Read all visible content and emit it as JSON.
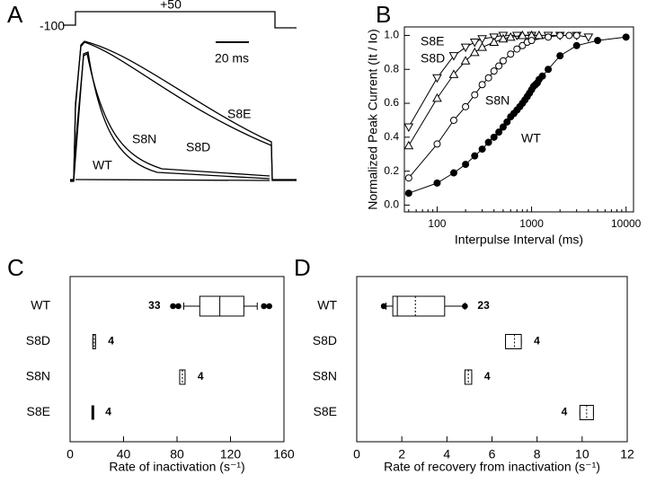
{
  "chart_data": [
    {
      "type": "traces",
      "panel": "A",
      "protocol_labels": [
        "-100",
        "+50"
      ],
      "scale_bar": "20 ms",
      "trace_labels": [
        "S8E",
        "S8D",
        "S8N",
        "WT"
      ]
    },
    {
      "type": "scatter",
      "panel": "B",
      "xlabel": "Interpulse Interval (ms)",
      "ylabel": "Normalized Peak Current (It / Io)",
      "xscale": "log",
      "xlim": [
        45,
        12000
      ],
      "xticks": [
        100,
        1000,
        10000
      ],
      "ylim": [
        -0.04,
        1.05
      ],
      "yticks": [
        {
          "value": 0,
          "label": "0.0"
        },
        {
          "value": 0.2,
          "label": "0.2"
        },
        {
          "value": 0.4,
          "label": "0.4"
        },
        {
          "value": 0.6,
          "label": "0.6"
        },
        {
          "value": 0.8,
          "label": "0.8"
        },
        {
          "value": 1,
          "label": "1.0"
        }
      ],
      "series": [
        {
          "name": "S8E",
          "color": "#000000",
          "marker": "triangle-down",
          "x": [
            50,
            100,
            150,
            200,
            250,
            300,
            400,
            500,
            700,
            1000,
            1500,
            2000,
            3000,
            4000
          ],
          "values": [
            0.46,
            0.75,
            0.88,
            0.93,
            0.96,
            0.98,
            0.99,
            1.0,
            1.0,
            1.0,
            1.0,
            1.0,
            1.0,
            0.99
          ]
        },
        {
          "name": "S8D",
          "color": "#000000",
          "marker": "triangle-up",
          "x": [
            50,
            100,
            150,
            200,
            250,
            300,
            400,
            500,
            600,
            800,
            1000,
            1200
          ],
          "values": [
            0.35,
            0.63,
            0.77,
            0.85,
            0.9,
            0.93,
            0.96,
            0.98,
            0.99,
            1.0,
            1.0,
            1.0
          ]
        },
        {
          "name": "S8N",
          "color": "#000000",
          "marker": "circle-open",
          "x": [
            50,
            100,
            150,
            200,
            250,
            300,
            350,
            400,
            450,
            500,
            600,
            700,
            800,
            900,
            1000,
            1500,
            2000,
            2500,
            3000
          ],
          "values": [
            0.16,
            0.36,
            0.5,
            0.58,
            0.65,
            0.71,
            0.75,
            0.79,
            0.82,
            0.85,
            0.89,
            0.92,
            0.94,
            0.96,
            0.97,
            0.99,
            1.0,
            1.0,
            1.0
          ]
        },
        {
          "name": "WT",
          "color": "#000000",
          "marker": "circle-filled",
          "x": [
            50,
            100,
            150,
            200,
            250,
            300,
            350,
            400,
            450,
            500,
            550,
            600,
            650,
            700,
            750,
            800,
            850,
            900,
            950,
            1000,
            1050,
            1100,
            1150,
            1200,
            1300,
            1500,
            2000,
            3000,
            5000,
            10000
          ],
          "values": [
            0.07,
            0.13,
            0.19,
            0.24,
            0.29,
            0.33,
            0.37,
            0.4,
            0.43,
            0.46,
            0.49,
            0.52,
            0.54,
            0.56,
            0.58,
            0.6,
            0.62,
            0.64,
            0.66,
            0.68,
            0.7,
            0.71,
            0.72,
            0.74,
            0.76,
            0.8,
            0.88,
            0.94,
            0.97,
            0.99
          ]
        }
      ]
    },
    {
      "type": "boxplot",
      "panel": "C",
      "xlabel": "Rate of inactivation (s⁻¹)",
      "xlim": [
        0,
        160
      ],
      "xticks": [
        0,
        40,
        80,
        120,
        160
      ],
      "categories": [
        "WT",
        "S8D",
        "S8N",
        "S8E"
      ],
      "boxes": [
        {
          "whislo": 85,
          "q1": 97,
          "med": 112,
          "q3": 130,
          "whishi": 140,
          "mean": null,
          "fliers": [
            77,
            81,
            145,
            149
          ],
          "n": 33
        },
        {
          "whislo": 17,
          "q1": 17,
          "med": null,
          "q3": 19,
          "whishi": 19,
          "mean": 18,
          "fliers": [],
          "n": 4
        },
        {
          "whislo": 82,
          "q1": 82,
          "med": null,
          "q3": 86,
          "whishi": 86,
          "mean": 84,
          "fliers": [],
          "n": 4
        },
        {
          "whislo": 17,
          "q1": 17,
          "med": 17,
          "q3": 17,
          "whishi": 17,
          "mean": null,
          "fliers": [],
          "n": 4
        }
      ]
    },
    {
      "type": "boxplot",
      "panel": "D",
      "xlabel": "Rate of recovery from inactivation (s⁻¹)",
      "xlim": [
        0,
        12
      ],
      "xticks": [
        0,
        2,
        4,
        6,
        8,
        10,
        12
      ],
      "categories": [
        "WT",
        "S8D",
        "S8N",
        "S8E"
      ],
      "boxes": [
        {
          "whislo": 1.3,
          "q1": 1.6,
          "med": 1.8,
          "q3": 3.9,
          "whishi": 4.8,
          "mean": 2.6,
          "fliers": [
            1.2,
            4.8
          ],
          "n": 23
        },
        {
          "whislo": 6.6,
          "q1": 6.6,
          "med": null,
          "q3": 7.3,
          "whishi": 7.3,
          "mean": 7.0,
          "fliers": [],
          "n": 4
        },
        {
          "whislo": 4.8,
          "q1": 4.8,
          "med": null,
          "q3": 5.1,
          "whishi": 5.1,
          "mean": 4.95,
          "fliers": [],
          "n": 4
        },
        {
          "whislo": 9.9,
          "q1": 9.9,
          "med": null,
          "q3": 10.5,
          "whishi": 10.5,
          "mean": 10.2,
          "fliers": [],
          "n": 4
        }
      ]
    }
  ]
}
